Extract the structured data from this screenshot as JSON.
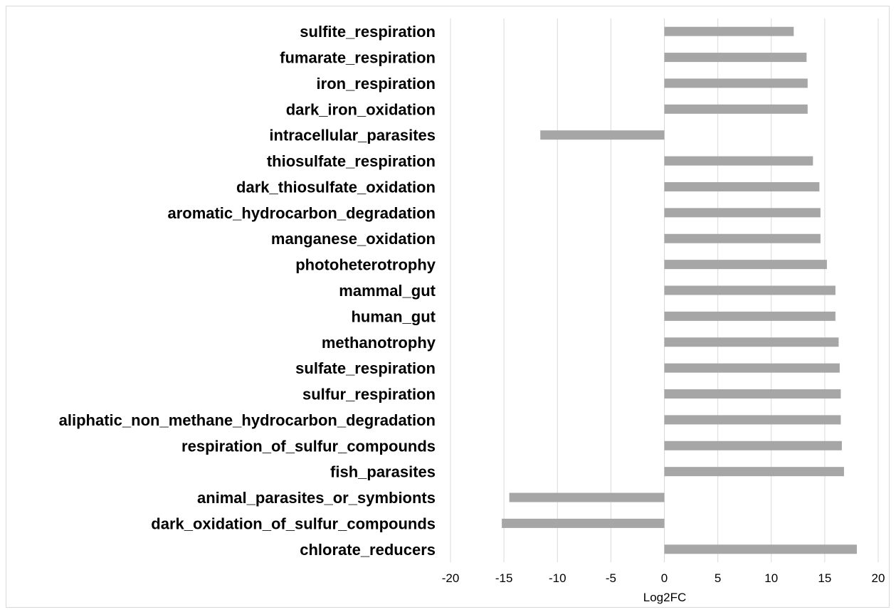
{
  "chart_data": {
    "type": "bar",
    "orientation": "horizontal",
    "title": "",
    "xlabel": "Log2FC",
    "ylabel": "",
    "xlim": [
      -20,
      20
    ],
    "xticks": [
      -20,
      -15,
      -10,
      -5,
      0,
      5,
      10,
      15,
      20
    ],
    "xtick_labels": [
      "-20",
      "-15",
      "-10",
      "-5",
      "0",
      "5",
      "10",
      "15",
      "20"
    ],
    "grid": true,
    "legend": "none",
    "bar_color": "#a6a6a6",
    "grid_color": "#d9d9d9",
    "categories": [
      "sulfite_respiration",
      "fumarate_respiration",
      "iron_respiration",
      "dark_iron_oxidation",
      "intracellular_parasites",
      "thiosulfate_respiration",
      "dark_thiosulfate_oxidation",
      "aromatic_hydrocarbon_degradation",
      "manganese_oxidation",
      "photoheterotrophy",
      "mammal_gut",
      "human_gut",
      "methanotrophy",
      "sulfate_respiration",
      "sulfur_respiration",
      "aliphatic_non_methane_hydrocarbon_degradation",
      "respiration_of_sulfur_compounds",
      "fish_parasites",
      "animal_parasites_or_symbionts",
      "dark_oxidation_of_sulfur_compounds",
      "chlorate_reducers"
    ],
    "values": [
      12.1,
      13.3,
      13.4,
      13.4,
      -11.6,
      13.9,
      14.5,
      14.6,
      14.6,
      15.2,
      16.0,
      16.0,
      16.3,
      16.4,
      16.5,
      16.5,
      16.6,
      16.8,
      -14.5,
      -15.2,
      18.0
    ]
  }
}
